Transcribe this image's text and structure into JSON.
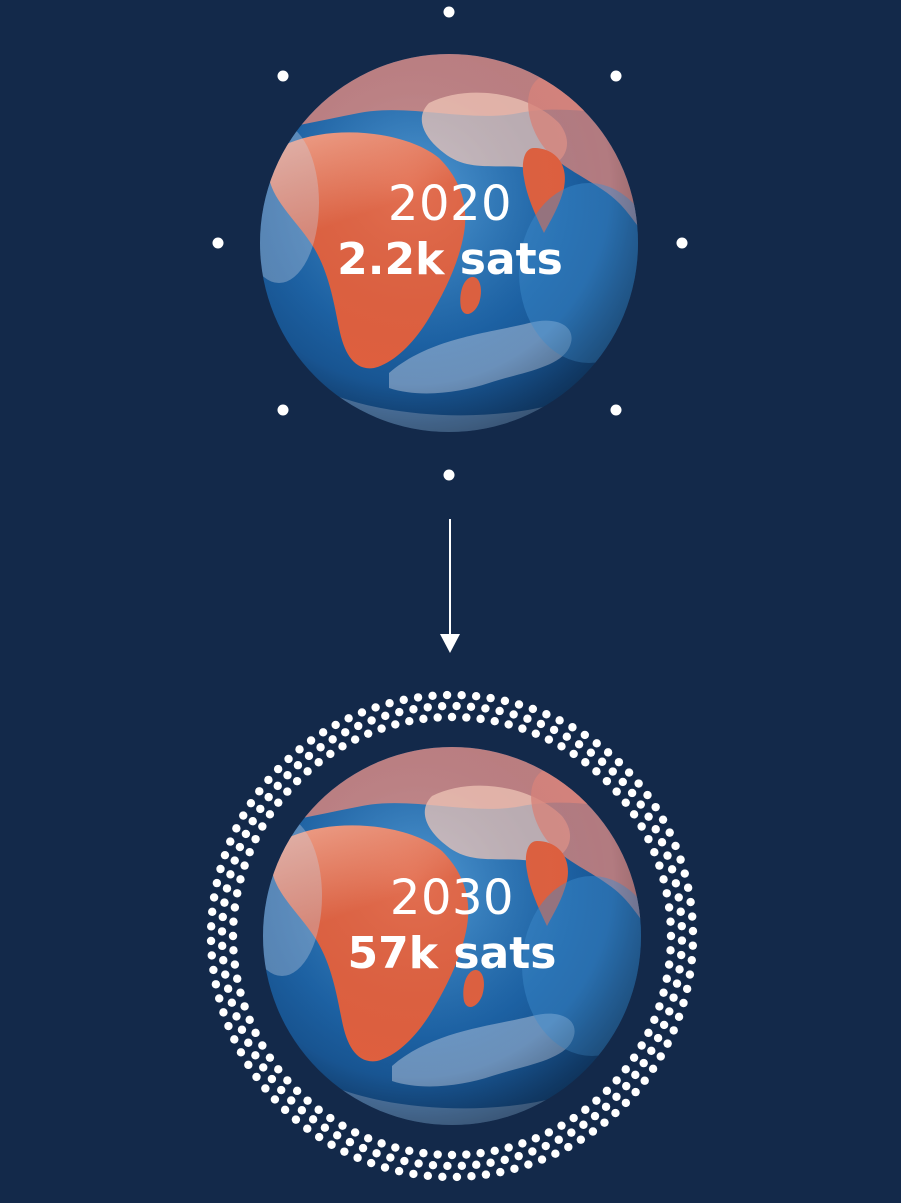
{
  "colors": {
    "background": "#13294a",
    "ocean": "#1c62a5",
    "ocean_light": "#3f8fd0",
    "land_orange": "#e0603f",
    "land_peach": "#f3a58e",
    "land_pink": "#d9857c",
    "ice": "#cfd8e8",
    "dots": "#ffffff"
  },
  "stages": [
    {
      "year": "2020",
      "count": "2.2k sats"
    },
    {
      "year": "2030",
      "count": "57k sats"
    }
  ],
  "icons": {
    "globe": "earth-globe-icon",
    "arrow": "arrow-down-icon"
  }
}
